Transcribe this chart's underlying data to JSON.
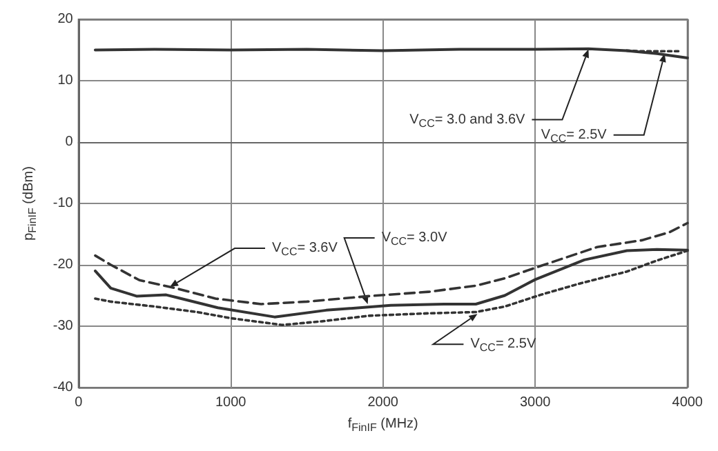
{
  "chart_data": {
    "type": "line",
    "xlabel": "f$_{FinIF}$ (MHz)",
    "ylabel": "p$_{FinIF}$ (dBm)",
    "xlim": [
      0,
      4000
    ],
    "xticks": [
      0,
      1000,
      2000,
      3000,
      4000
    ],
    "ylim": [
      -40,
      20
    ],
    "yticks": [
      -40,
      -30,
      -20,
      -10,
      0,
      10,
      20
    ],
    "grid": true,
    "marker": "none",
    "series": [
      {
        "color": "#333333",
        "line_style": "solid",
        "x": [
          110,
          500,
          1000,
          1500,
          2000,
          2500,
          3000,
          3350,
          3600,
          3800,
          4000
        ],
        "values": [
          15,
          15.1,
          15,
          15.1,
          14.9,
          15.1,
          15.1,
          15.2,
          14.9,
          14.4,
          13.7
        ]
      },
      {
        "color": "#333333",
        "line_style": "dotted",
        "x": [
          3600,
          3700,
          3800,
          3950
        ],
        "values": [
          14.9,
          14.8,
          14.8,
          14.8
        ]
      },
      {
        "color": "#333333",
        "line_style": "dashed",
        "x": [
          110,
          212,
          400,
          636,
          900,
          1200,
          1500,
          1907,
          2300,
          2610,
          2800,
          3034,
          3407,
          3700,
          3881,
          4000
        ],
        "values": [
          -18.5,
          -20,
          -22.5,
          -23.8,
          -25.5,
          -26.4,
          -26,
          -25.1,
          -24.4,
          -23.4,
          -22.2,
          -20.2,
          -17.1,
          -16,
          -14.7,
          -13.2
        ]
      },
      {
        "color": "#333333",
        "line_style": "solid",
        "x": [
          110,
          212,
          381,
          576,
          915,
          1288,
          1627,
          2051,
          2400,
          2610,
          2800,
          3000,
          3322,
          3602,
          3800,
          4000
        ],
        "values": [
          -21,
          -23.8,
          -25.1,
          -24.9,
          -27,
          -28.5,
          -27.4,
          -26.6,
          -26.4,
          -26.4,
          -25,
          -22.4,
          -19.2,
          -17.7,
          -17.5,
          -17.6
        ]
      },
      {
        "color": "#333333",
        "line_style": "dotted",
        "x": [
          110,
          212,
          500,
          780,
          1000,
          1339,
          1600,
          1907,
          2300,
          2610,
          2800,
          3034,
          3300,
          3602,
          3800,
          4000
        ],
        "values": [
          -25.5,
          -26,
          -26.8,
          -27.7,
          -28.7,
          -29.8,
          -29.2,
          -28.3,
          -27.9,
          -27.7,
          -26.8,
          -24.9,
          -23,
          -21.1,
          -19.3,
          -17.7
        ]
      }
    ],
    "annotations": [
      {
        "text": "V$_{CC}$= 3.0 and 3.6V",
        "x": 3350,
        "y": 15.1
      },
      {
        "text": "V$_{CC}$= 2.5V",
        "x": 3850,
        "y": 14.4
      },
      {
        "text": "V$_{CC}$= 3.6V",
        "x": 600,
        "y": -23.6
      },
      {
        "text": "V$_{CC}$= 3.0V",
        "x": 1900,
        "y": -26.4
      },
      {
        "text": "V$_{CC}$= 2.5V",
        "x": 2620,
        "y": -28
      }
    ]
  }
}
